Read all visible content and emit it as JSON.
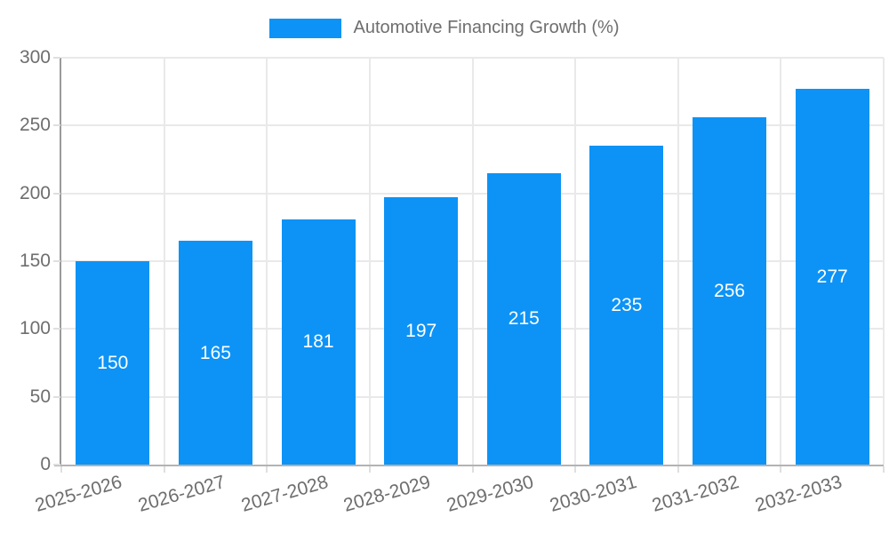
{
  "legend": {
    "label": "Automotive Financing Growth (%)"
  },
  "chart_data": {
    "type": "bar",
    "title": "Automotive Financing Growth (%)",
    "categories": [
      "2025-2026",
      "2026-2027",
      "2027-2028",
      "2028-2029",
      "2029-2030",
      "2030-2031",
      "2031-2032",
      "2032-2033"
    ],
    "values": [
      150,
      165,
      181,
      197,
      215,
      235,
      256,
      277
    ],
    "xlabel": "",
    "ylabel": "",
    "ylim": [
      0,
      300
    ],
    "yticks": [
      0,
      50,
      100,
      150,
      200,
      250,
      300
    ],
    "grid": true,
    "legend_position": "top",
    "value_label_position": "inside-center",
    "xtick_rotation_deg": -16,
    "colors": {
      "bar": "#0d93f6",
      "bar_label": "#ffffff",
      "axis_text": "#6e6e6e",
      "grid": "#e9e9e9",
      "tick": "#dfdfdf",
      "y_axis_line": "#9a9a9a",
      "x_axis_line": "#b3b3b3",
      "background": "#ffffff"
    }
  }
}
